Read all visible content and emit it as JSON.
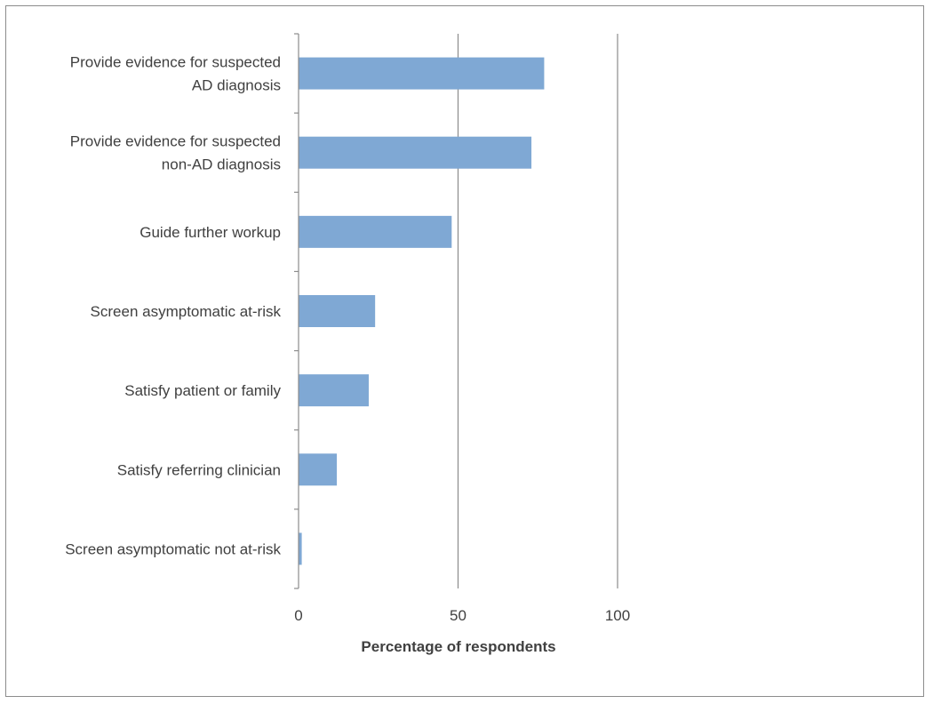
{
  "chart_data": {
    "type": "bar",
    "orientation": "horizontal",
    "categories": [
      [
        "Provide evidence for suspected",
        "AD diagnosis"
      ],
      [
        "Provide evidence for suspected",
        "non-AD diagnosis"
      ],
      [
        "Guide further workup"
      ],
      [
        "Screen asymptomatic at-risk"
      ],
      [
        "Satisfy patient or family"
      ],
      [
        "Satisfy referring clinician"
      ],
      [
        "Screen asymptomatic not at-risk"
      ]
    ],
    "values": [
      77,
      73,
      48,
      24,
      22,
      12,
      1
    ],
    "xlabel": "Percentage of respondents",
    "ylabel": "",
    "xlim": [
      0,
      100
    ],
    "xticks": [
      "0",
      "50",
      "100"
    ],
    "grid": "vertical",
    "legend": "none",
    "bar_color": "#7fa8d4",
    "grid_color": "#8c8c8c",
    "axis_color": "#8c8c8c"
  }
}
